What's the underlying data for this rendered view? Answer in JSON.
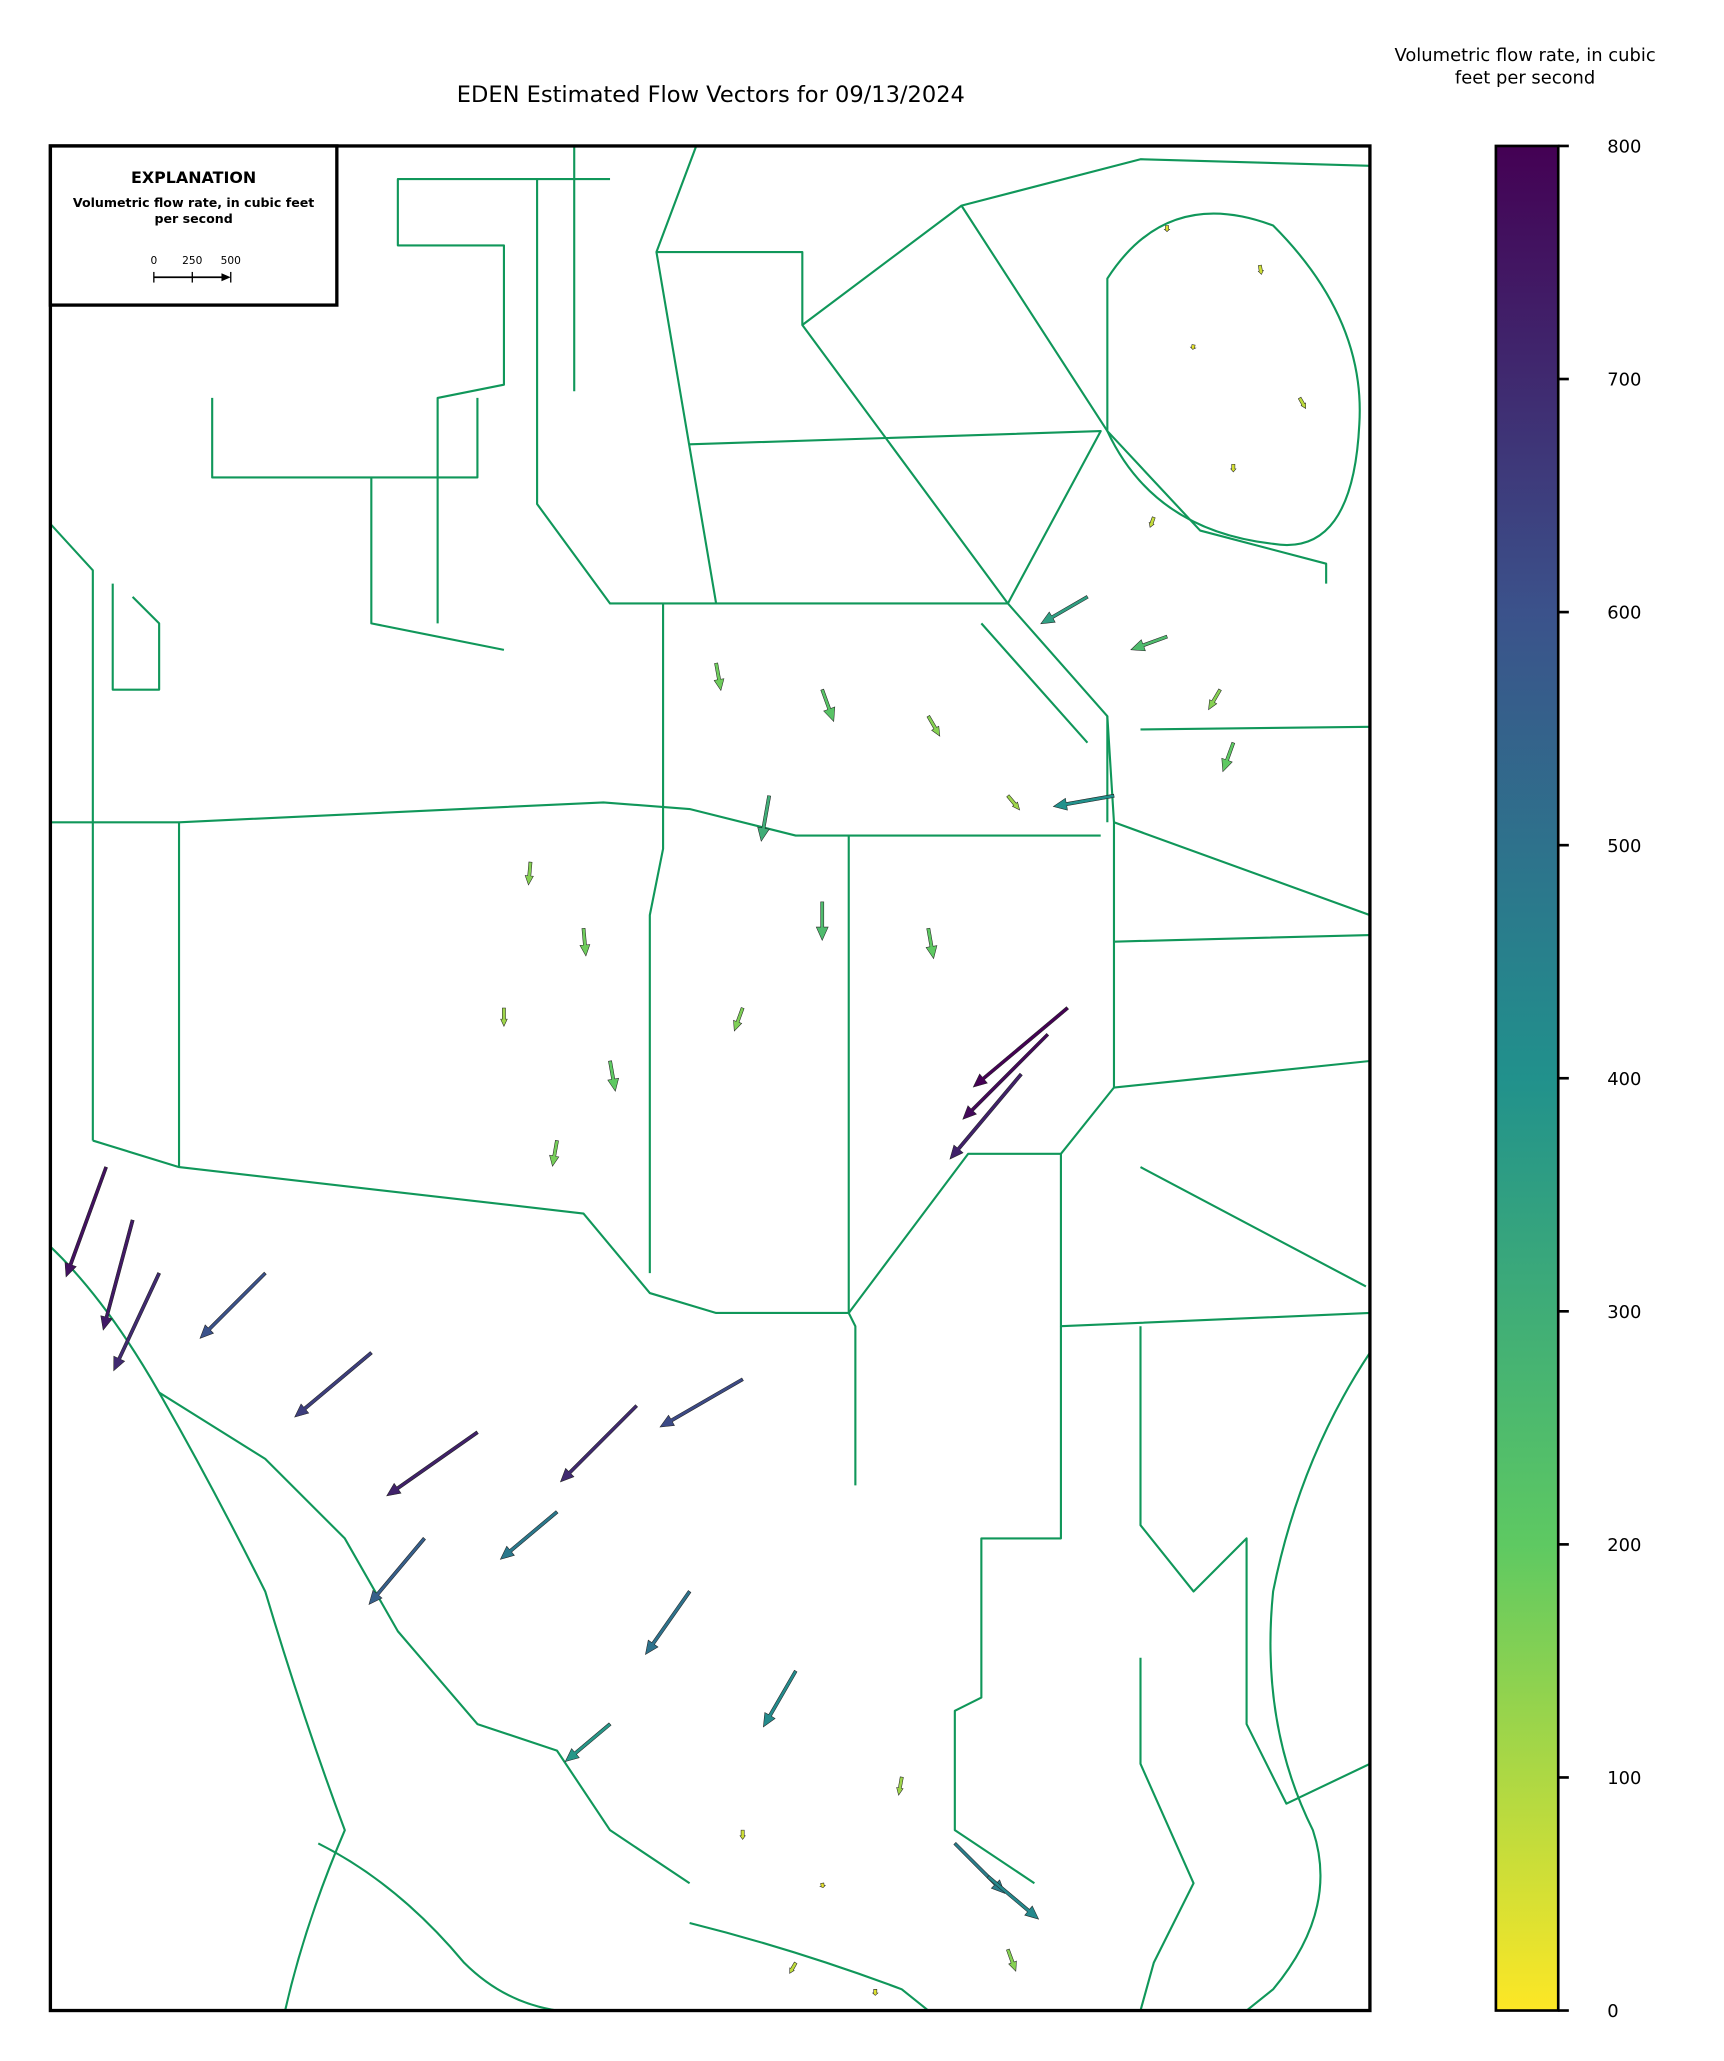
{
  "title": "EDEN Estimated Flow Vectors for 09/13/2024",
  "explanation": {
    "heading": "EXPLANATION",
    "label": "Volumetric flow rate, in cubic feet per second",
    "scale_ticks": [
      0,
      250,
      500
    ]
  },
  "colorbar": {
    "label": "Volumetric flow rate, in cubic feet per second",
    "lim": [
      0,
      800
    ],
    "ticks": [
      0,
      100,
      200,
      300,
      400,
      500,
      600,
      700,
      800
    ]
  },
  "vectors": {
    "rate": [
      40,
      60,
      30,
      80,
      50,
      70,
      350,
      250,
      150,
      400,
      200,
      180,
      220,
      150,
      300,
      120,
      250,
      200,
      160,
      780,
      720,
      800,
      150,
      180,
      120,
      200,
      170,
      760,
      740,
      700,
      600,
      650,
      720,
      560,
      480,
      700,
      620,
      500,
      420,
      380,
      60,
      30,
      120,
      80,
      150,
      40,
      460,
      430
    ],
    "direction_deg": [
      -90,
      -80,
      -100,
      -60,
      -90,
      -110,
      210,
      200,
      240,
      190,
      250,
      -80,
      -70,
      -60,
      -100,
      -50,
      -90,
      -80,
      -110,
      225,
      230,
      220,
      -95,
      -85,
      -90,
      -80,
      -100,
      250,
      255,
      245,
      225,
      220,
      215,
      230,
      220,
      225,
      210,
      235,
      240,
      220,
      -90,
      -80,
      -100,
      -120,
      -70,
      -90,
      315,
      320
    ]
  }
}
